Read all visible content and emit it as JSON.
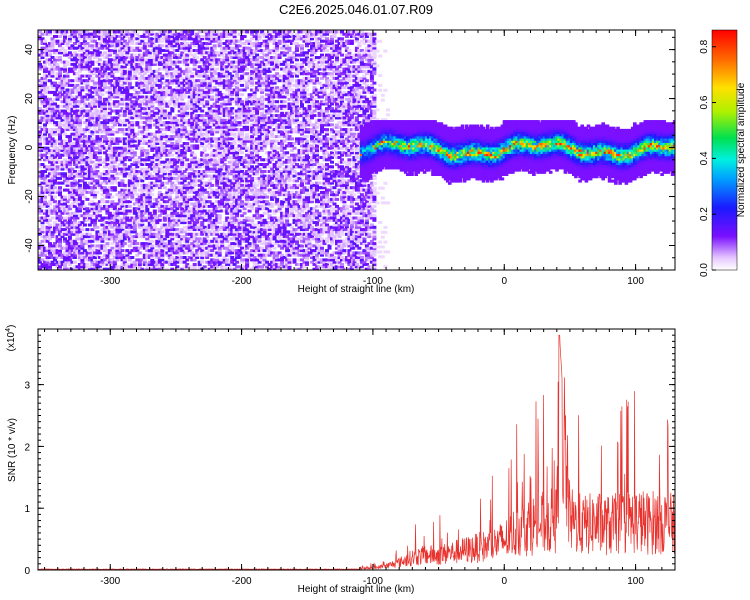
{
  "title": "C2E6.2025.046.01.07.R09",
  "colors": {
    "snr_line": "#e8322e",
    "spec_bg": "#d9c8f7",
    "spec_dark": "#5a18e0"
  },
  "chart_data": [
    {
      "type": "heatmap",
      "title": "C2E6.2025.046.01.07.R09",
      "xlabel": "Height of straight line (km)",
      "ylabel": "Frequency (Hz)",
      "xlim": [
        -355,
        130
      ],
      "ylim": [
        -50,
        48
      ],
      "x_ticks": [
        -300,
        -200,
        -100,
        0,
        100
      ],
      "y_ticks": [
        -40,
        -20,
        0,
        20,
        40
      ],
      "colorbar": {
        "label": "Normalized spectral amplitude",
        "range": [
          0,
          0.86
        ],
        "ticks": [
          0.0,
          0.2,
          0.4,
          0.6,
          0.8
        ],
        "colormap": "rainbow"
      },
      "regions": [
        {
          "name": "noise",
          "x_range": [
            -355,
            -100
          ],
          "freq_range": [
            -50,
            48
          ],
          "amplitude_range": [
            0.02,
            0.15
          ]
        },
        {
          "name": "signal",
          "x_range": [
            -110,
            130
          ],
          "center_freq": 0,
          "half_width_hz": 6,
          "amplitude_range": [
            0.1,
            0.8
          ]
        }
      ]
    },
    {
      "type": "line",
      "xlabel": "Height of straight line (km)",
      "ylabel": "SNR (10 * v/v)",
      "y_multiplier": "(x10^4)",
      "y_multiplier_base": "(x10",
      "y_multiplier_exp": "4",
      "y_multiplier_tail": ")",
      "xlim": [
        -355,
        130
      ],
      "ylim": [
        0,
        3.9
      ],
      "x_ticks": [
        -300,
        -200,
        -100,
        0,
        100
      ],
      "y_ticks": [
        0,
        1,
        2,
        3
      ],
      "series": [
        {
          "x": [
            -355,
            -300,
            -250,
            -200,
            -150,
            -110,
            -100,
            -90,
            -80,
            -70,
            -60,
            -50,
            -40,
            -30,
            -20,
            -10,
            0,
            10,
            20,
            30,
            40,
            42,
            50,
            60,
            70,
            80,
            90,
            100,
            110,
            120,
            130
          ],
          "y": [
            0.01,
            0.01,
            0.01,
            0.01,
            0.01,
            0.02,
            0.04,
            0.08,
            0.15,
            0.25,
            0.3,
            0.3,
            0.35,
            0.4,
            0.45,
            0.5,
            0.6,
            0.8,
            0.9,
            0.95,
            1.0,
            3.8,
            1.0,
            0.9,
            0.95,
            0.9,
            0.95,
            1.0,
            0.95,
            1.0,
            0.9
          ]
        }
      ]
    }
  ]
}
